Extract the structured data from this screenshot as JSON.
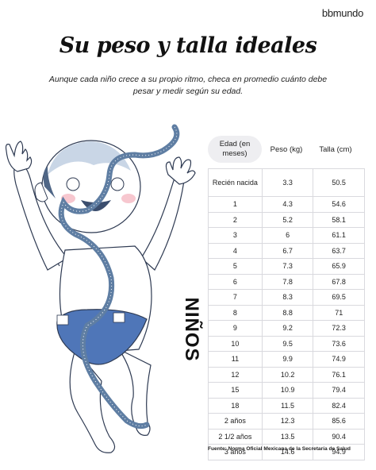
{
  "brand": "bbmundo",
  "title": "Su peso y talla ideales",
  "subtitle": "Aunque cada niño crece a su propio ritmo, checa en promedio cuánto debe pesar y medir según su edad.",
  "section_label": "NIÑOS",
  "table": {
    "headers": {
      "age": "Edad (en meses)",
      "weight": "Peso (kg)",
      "height": "Talla (cm)"
    },
    "rows": [
      {
        "age": "Recién nacida",
        "weight": "3.3",
        "height": "50.5"
      },
      {
        "age": "1",
        "weight": "4.3",
        "height": "54.6"
      },
      {
        "age": "2",
        "weight": "5.2",
        "height": "58.1"
      },
      {
        "age": "3",
        "weight": "6",
        "height": "61.1"
      },
      {
        "age": "4",
        "weight": "6.7",
        "height": "63.7"
      },
      {
        "age": "5",
        "weight": "7.3",
        "height": "65.9"
      },
      {
        "age": "6",
        "weight": "7.8",
        "height": "67.8"
      },
      {
        "age": "7",
        "weight": "8.3",
        "height": "69.5"
      },
      {
        "age": "8",
        "weight": "8.8",
        "height": "71"
      },
      {
        "age": "9",
        "weight": "9.2",
        "height": "72.3"
      },
      {
        "age": "10",
        "weight": "9.5",
        "height": "73.6"
      },
      {
        "age": "11",
        "weight": "9.9",
        "height": "74.9"
      },
      {
        "age": "12",
        "weight": "10.2",
        "height": "76.1"
      },
      {
        "age": "15",
        "weight": "10.9",
        "height": "79.4"
      },
      {
        "age": "18",
        "weight": "11.5",
        "height": "82.4"
      },
      {
        "age": "2 años",
        "weight": "12.3",
        "height": "85.6"
      },
      {
        "age": "2 1/2 años",
        "weight": "13.5",
        "height": "90.4"
      },
      {
        "age": "3 años",
        "weight": "14.6",
        "height": "94.9"
      }
    ]
  },
  "source": "Fuente: Norma Oficial Mexicana de la Secretaría de Salud",
  "colors": {
    "tape": "#5f7ea3",
    "diaper": "#4f76b8",
    "skin_shadow": "#c9d6e6"
  }
}
